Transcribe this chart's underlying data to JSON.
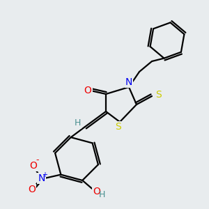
{
  "background_color": "#e8ecee",
  "bond_color": "#000000",
  "atom_colors": {
    "N": "#0000ee",
    "O": "#ee0000",
    "S": "#cccc00",
    "C": "#000000",
    "H": "#4a9090"
  },
  "figsize": [
    3.0,
    3.0
  ],
  "dpi": 100
}
